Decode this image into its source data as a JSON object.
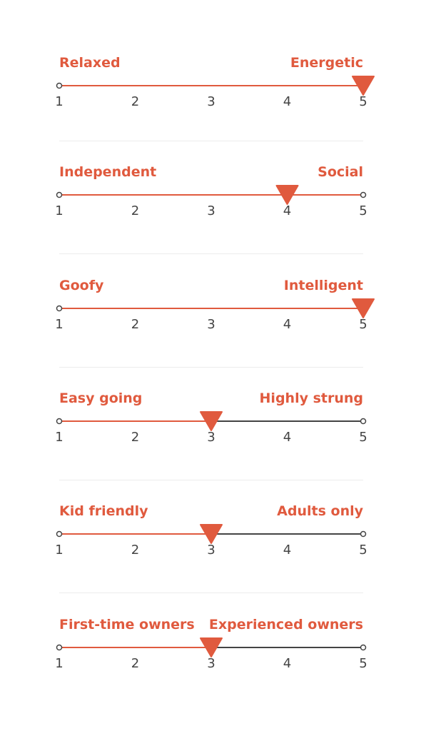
{
  "scales": [
    {
      "left_label": "Relaxed",
      "right_label": "Energetic",
      "value": 5
    },
    {
      "left_label": "Independent",
      "right_label": "Social",
      "value": 4
    },
    {
      "left_label": "Goofy",
      "right_label": "Intelligent",
      "value": 5
    },
    {
      "left_label": "Easy going",
      "right_label": "Highly strung",
      "value": 3
    },
    {
      "left_label": "Kid friendly",
      "right_label": "Adults only",
      "value": 3
    },
    {
      "left_label": "First-time owners",
      "right_label": "Experienced owners",
      "value": 3
    }
  ],
  "ticks": [
    "1",
    "2",
    "3",
    "4",
    "5"
  ],
  "scale_min": 1,
  "scale_max": 5,
  "colors": {
    "accent": "#e05a3e",
    "track_inactive": "#444444",
    "tick_text": "#444444",
    "divider": "#ececec"
  }
}
